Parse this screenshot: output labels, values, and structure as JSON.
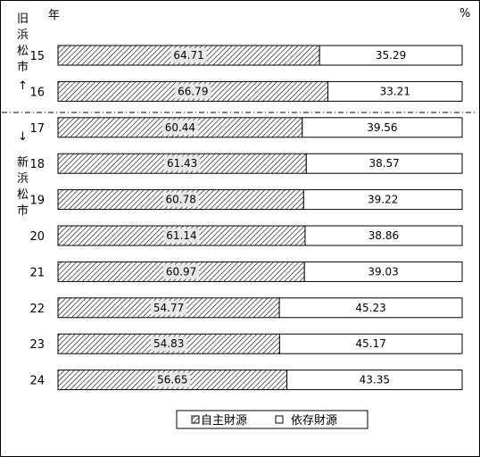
{
  "chart_data": {
    "type": "bar",
    "stacked": "100%",
    "orientation": "horizontal",
    "title": "",
    "year_unit_label": "年",
    "percent_unit_label": "%",
    "categories": [
      "15",
      "16",
      "17",
      "18",
      "19",
      "20",
      "21",
      "22",
      "23",
      "24"
    ],
    "series": [
      {
        "name": "自主財源",
        "fill": "hatched",
        "values": [
          64.71,
          66.79,
          60.44,
          61.43,
          60.78,
          61.14,
          60.97,
          54.77,
          54.83,
          56.65
        ],
        "labels": [
          "64.71",
          "66.79",
          "60.44",
          "61.43",
          "60.78",
          "61.14",
          "60.97",
          "54.77",
          "54.83",
          "56.65"
        ]
      },
      {
        "name": "依存財源",
        "fill": "white",
        "values": [
          35.29,
          33.21,
          39.56,
          38.57,
          39.22,
          38.86,
          39.03,
          45.23,
          45.17,
          43.35
        ],
        "labels": [
          "35.29",
          "33.21",
          "39.56",
          "38.57",
          "39.22",
          "38.86",
          "39.03",
          "45.23",
          "45.17",
          "43.35"
        ]
      }
    ],
    "xlim": [
      0,
      100
    ],
    "legend_position": "bottom",
    "annotations": {
      "old_city_label": [
        "旧",
        "浜",
        "松",
        "市"
      ],
      "new_city_label": [
        "新",
        "浜",
        "松",
        "市"
      ],
      "up_arrow": "↑",
      "down_arrow": "↓",
      "divider_style": "dash-dot"
    }
  },
  "colors": {
    "border": "#000000",
    "hatch": "#000000",
    "label_bg": "#e8e8e8"
  }
}
